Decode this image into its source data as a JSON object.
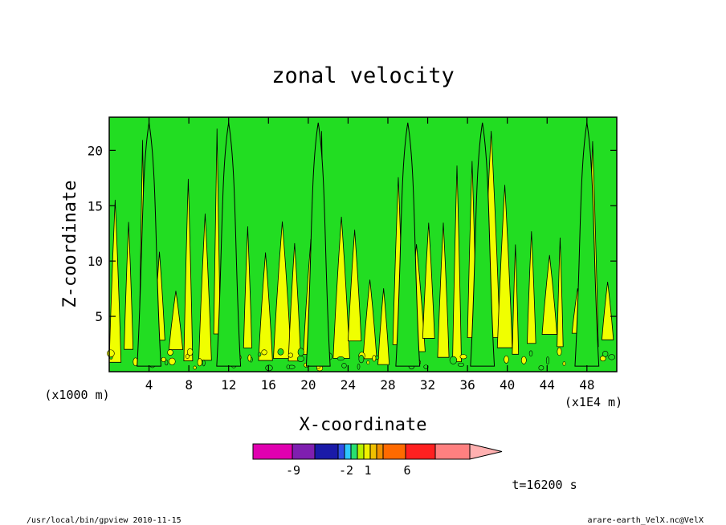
{
  "chart_data": {
    "type": "heatmap",
    "title": "zonal velocity",
    "xlabel": "X-coordinate",
    "ylabel": "Z-coordinate",
    "x_unit_left": "(x1000 m)",
    "x_unit_right": "(x1E4 m)",
    "xlim": [
      0,
      51
    ],
    "ylim": [
      0,
      23
    ],
    "x_ticks": [
      4,
      8,
      12,
      16,
      20,
      24,
      28,
      32,
      36,
      40,
      44,
      48
    ],
    "y_ticks": [
      5,
      10,
      15,
      20
    ],
    "plume_centers_x": [
      4,
      12,
      21,
      30,
      37.5,
      48
    ],
    "colorbar": {
      "colors": [
        "#e000b0",
        "#7f1fb0",
        "#1a1aa8",
        "#2e4fe6",
        "#2ec8ff",
        "#28e070",
        "#b8f000",
        "#f0f000",
        "#f0c000",
        "#f09000",
        "#ff6a00",
        "#ff2020",
        "#ff8080",
        "#ffb0b0"
      ],
      "tick_labels": [
        "-9",
        "-2",
        "1",
        "6"
      ]
    },
    "field_colors": {
      "low": "#22dd22",
      "high": "#f0ff00"
    },
    "time_label": "t=16200 s",
    "grid": false
  },
  "footer": {
    "left": "/usr/local/bin/gpview  2010-11-15",
    "right": "arare-earth_VelX.nc@VelX"
  }
}
